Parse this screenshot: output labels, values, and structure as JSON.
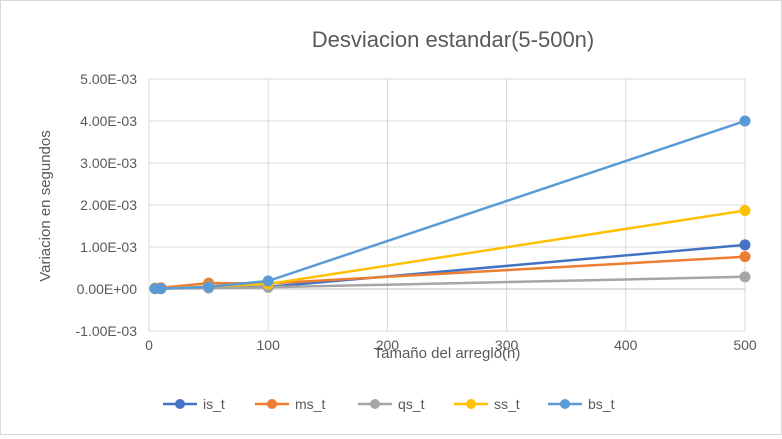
{
  "chart_data": {
    "type": "line",
    "title": "Desviacion estandar(5-500n)",
    "xlabel": "Tamaño del arreglo(n)",
    "ylabel": "Variacion  en segundos",
    "xlim": [
      0,
      500
    ],
    "ylim": [
      -0.001,
      0.005
    ],
    "x_ticks": [
      0,
      100,
      200,
      300,
      400,
      500
    ],
    "x_tick_labels": [
      "0",
      "100",
      "200",
      "300",
      "400",
      "500"
    ],
    "y_ticks": [
      -0.001,
      0,
      0.001,
      0.002,
      0.003,
      0.004,
      0.005
    ],
    "y_tick_labels": [
      "-1.00E-03",
      "0.00E+00",
      "1.00E-03",
      "2.00E-03",
      "3.00E-03",
      "4.00E-03",
      "5.00E-03"
    ],
    "grid": true,
    "legend_position": "bottom",
    "series": [
      {
        "name": "is_t",
        "color": "#4472C4",
        "x": [
          5,
          10,
          50,
          100,
          500
        ],
        "y": [
          1e-05,
          1e-05,
          5e-05,
          5e-05,
          0.00105
        ]
      },
      {
        "name": "ms_t",
        "color": "#ED7D31",
        "x": [
          5,
          10,
          50,
          100,
          500
        ],
        "y": [
          2e-05,
          3e-05,
          0.00014,
          0.00013,
          0.00077
        ]
      },
      {
        "name": "qs_t",
        "color": "#A5A5A5",
        "x": [
          5,
          10,
          50,
          100,
          500
        ],
        "y": [
          1e-05,
          1e-05,
          2e-05,
          4e-05,
          0.00029
        ]
      },
      {
        "name": "ss_t",
        "color": "#FFC000",
        "x": [
          5,
          10,
          50,
          100,
          500
        ],
        "y": [
          1e-05,
          1e-05,
          6e-05,
          0.00012,
          0.00187
        ]
      },
      {
        "name": "bs_t",
        "color": "#5B9BD5",
        "x": [
          5,
          10,
          50,
          100,
          500
        ],
        "y": [
          1e-05,
          1e-05,
          5e-05,
          0.00019,
          0.004
        ]
      }
    ]
  }
}
